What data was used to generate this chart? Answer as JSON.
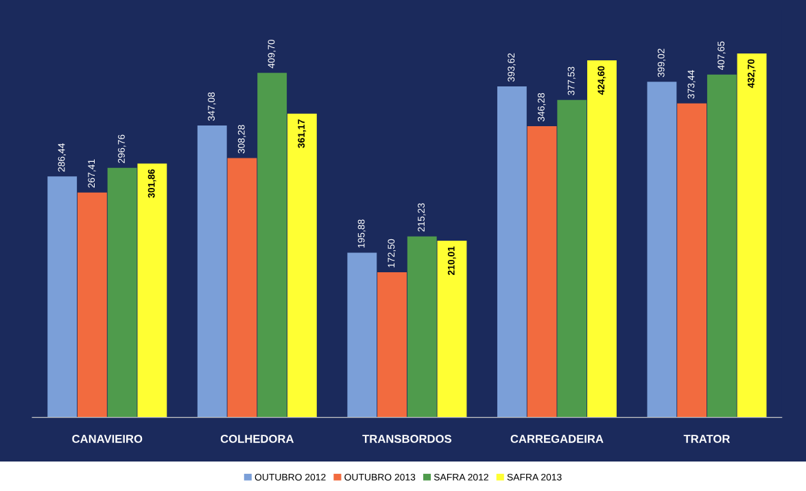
{
  "chart_data": {
    "type": "bar",
    "categories": [
      "CANAVIEIRO",
      "COLHEDORA",
      "TRANSBORDOS",
      "CARREGADEIRA",
      "TRATOR"
    ],
    "series": [
      {
        "name": "OUTUBRO 2012",
        "color": "#7b9fd8",
        "values": [
          286.44,
          347.08,
          195.88,
          393.62,
          399.02
        ],
        "value_labels": [
          "286,44",
          "347,08",
          "195,88",
          "393,62",
          "399,02"
        ]
      },
      {
        "name": "OUTUBRO 2013",
        "color": "#f26b3f",
        "values": [
          267.41,
          308.28,
          172.5,
          346.28,
          373.44
        ],
        "value_labels": [
          "267,41",
          "308,28",
          "172,50",
          "346,28",
          "373,44"
        ]
      },
      {
        "name": "SAFRA 2012",
        "color": "#4f9b4c",
        "values": [
          296.76,
          409.7,
          215.23,
          377.53,
          407.65
        ],
        "value_labels": [
          "296,76",
          "409,70",
          "215,23",
          "377,53",
          "407,65"
        ]
      },
      {
        "name": "SAFRA 2013",
        "color": "#ffff33",
        "values": [
          301.86,
          361.17,
          210.01,
          424.6,
          432.7
        ],
        "value_labels": [
          "301,86",
          "361,17",
          "210,01",
          "424,60",
          "432,70"
        ]
      }
    ],
    "legend": "bottom",
    "grid": false
  }
}
